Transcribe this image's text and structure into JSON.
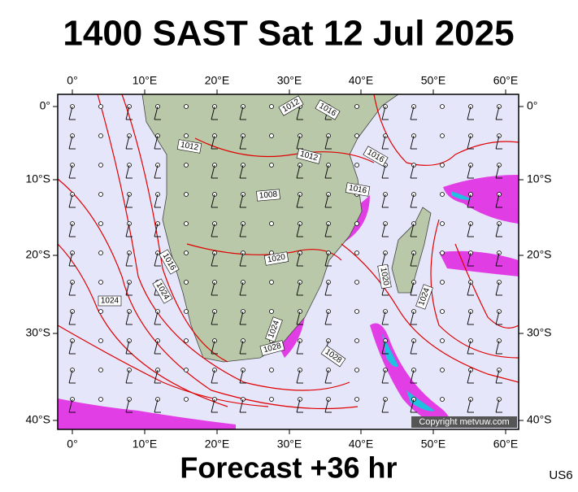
{
  "title": "1400 SAST Sat 12 Jul 2025",
  "footer": "Forecast +36 hr",
  "code": "US6",
  "copyright": "Copyright metvuw.com",
  "x_axis_labels": [
    "0°",
    "10°E",
    "20°E",
    "30°E",
    "40°E",
    "50°E",
    "60°E"
  ],
  "y_axis_labels": [
    "0°",
    "10°S",
    "20°S",
    "30°S",
    "40°S"
  ],
  "isobar_labels": [
    "1012",
    "1016",
    "1012",
    "1012",
    "1016",
    "1016",
    "1008",
    "1016",
    "1020",
    "1020",
    "1024",
    "1024",
    "1024",
    "1024",
    "1028",
    "1028"
  ]
}
